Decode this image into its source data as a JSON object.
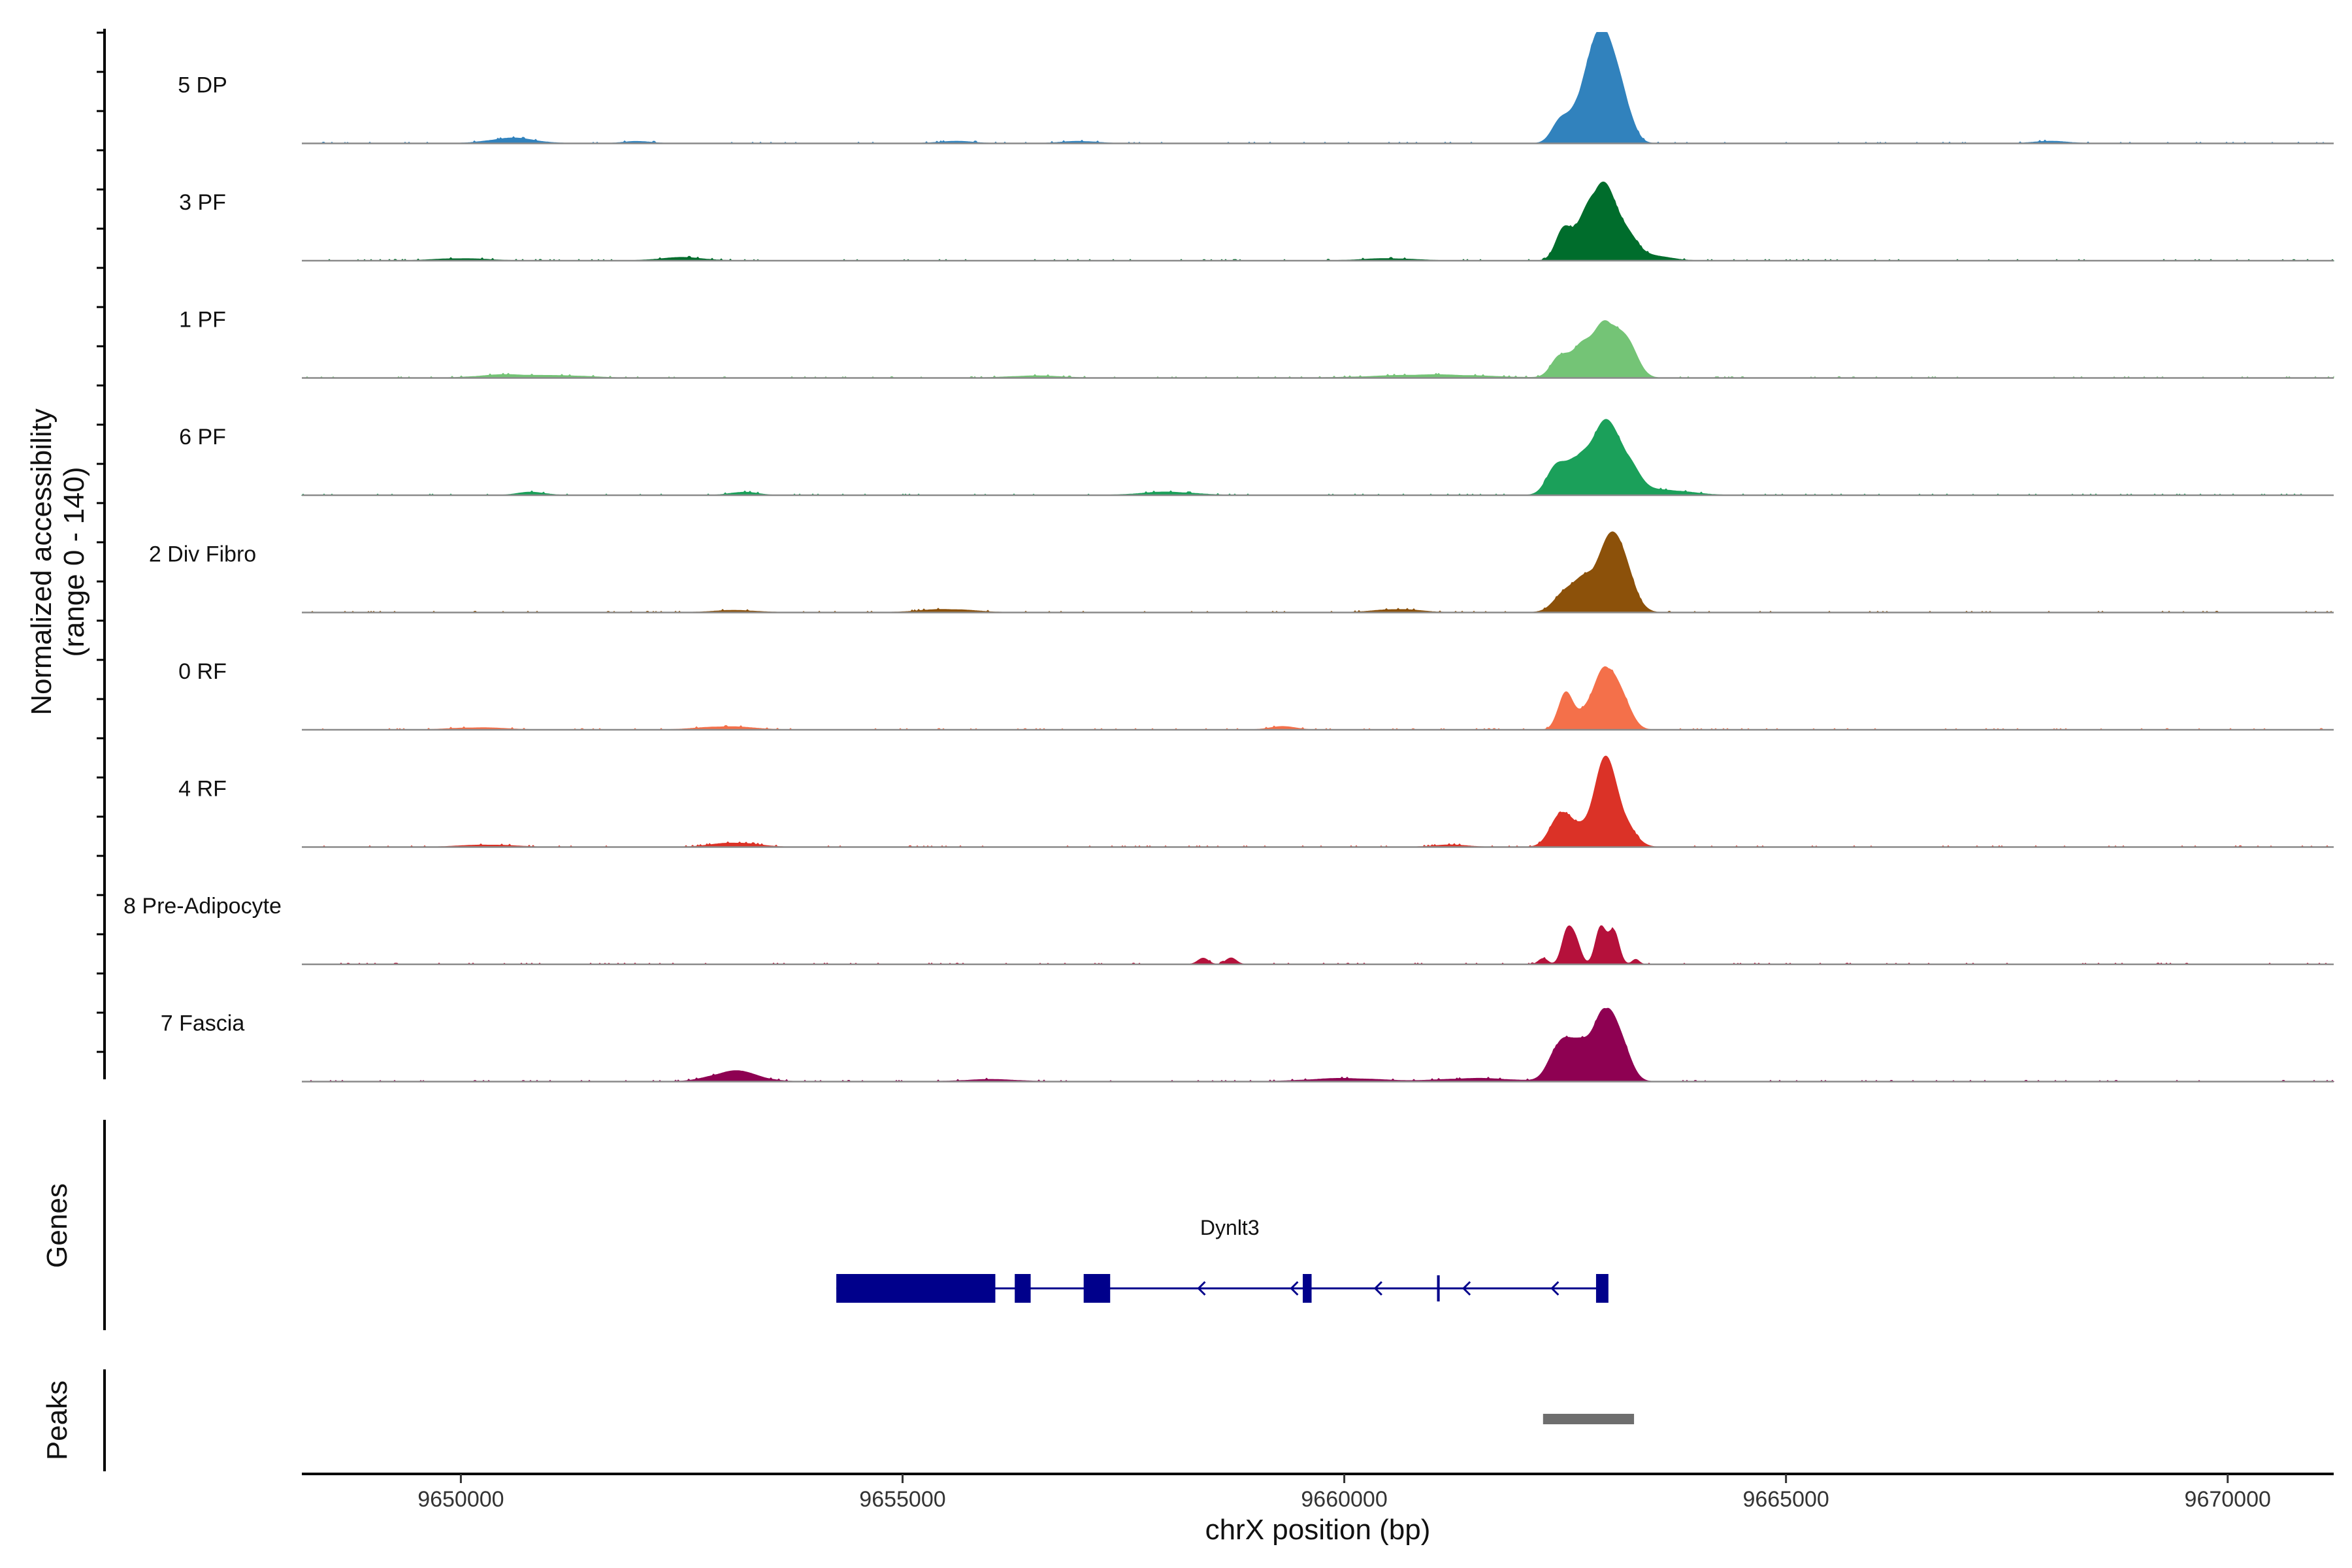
{
  "chart_data": {
    "type": "area",
    "title": "",
    "ylabel": "Normalized accessibility",
    "ylabel_range": "(range 0 - 140)",
    "ylim": [
      0,
      140
    ],
    "xlabel": "chrX position (bp)",
    "xlim": [
      9648200,
      9671200
    ],
    "x_ticks": [
      9650000,
      9655000,
      9660000,
      9665000,
      9670000
    ],
    "x_tick_labels": [
      "9650000",
      "9655000",
      "9660000",
      "9665000",
      "9670000"
    ],
    "tracks": [
      {
        "name": "5 DP",
        "color": "#3182BD",
        "peaks": [
          [
            9662450,
            0.2,
            100
          ],
          [
            9662700,
            0.35,
            120
          ],
          [
            9662920,
            0.95,
            140
          ],
          [
            9663150,
            0.35,
            110
          ],
          [
            9650580,
            0.05,
            250
          ],
          [
            9655600,
            0.02,
            200
          ],
          [
            9652000,
            0.02,
            150
          ],
          [
            9657000,
            0.02,
            200
          ],
          [
            9668000,
            0.02,
            200
          ]
        ]
      },
      {
        "name": "3 PF",
        "color": "#006D2C",
        "peaks": [
          [
            9662480,
            0.28,
            90
          ],
          [
            9662720,
            0.3,
            110
          ],
          [
            9662930,
            0.68,
            130
          ],
          [
            9663200,
            0.22,
            130
          ],
          [
            9663500,
            0.04,
            200
          ],
          [
            9652500,
            0.03,
            250
          ],
          [
            9650000,
            0.02,
            300
          ],
          [
            9660500,
            0.02,
            300
          ]
        ]
      },
      {
        "name": "1 PF",
        "color": "#74C476",
        "peaks": [
          [
            9662450,
            0.22,
            100
          ],
          [
            9662680,
            0.25,
            100
          ],
          [
            9662950,
            0.52,
            130
          ],
          [
            9663200,
            0.3,
            120
          ],
          [
            9661000,
            0.03,
            600
          ],
          [
            9650500,
            0.03,
            300
          ],
          [
            9651200,
            0.02,
            300
          ],
          [
            9656500,
            0.02,
            300
          ]
        ]
      },
      {
        "name": "6 PF",
        "color": "#1BA05A",
        "peaks": [
          [
            9662400,
            0.25,
            110
          ],
          [
            9662650,
            0.33,
            120
          ],
          [
            9662950,
            0.62,
            140
          ],
          [
            9663200,
            0.28,
            130
          ],
          [
            9663600,
            0.05,
            300
          ],
          [
            9650800,
            0.03,
            150
          ],
          [
            9653200,
            0.03,
            150
          ],
          [
            9658000,
            0.03,
            300
          ]
        ]
      },
      {
        "name": "2 Div Fibro",
        "color": "#8C510A",
        "peaks": [
          [
            9662500,
            0.18,
            130
          ],
          [
            9662720,
            0.24,
            110
          ],
          [
            9663000,
            0.65,
            140
          ],
          [
            9663200,
            0.25,
            120
          ],
          [
            9653100,
            0.02,
            250
          ],
          [
            9655500,
            0.03,
            300
          ],
          [
            9660600,
            0.03,
            250
          ]
        ]
      },
      {
        "name": "0 RF",
        "color": "#F4704A",
        "peaks": [
          [
            9662500,
            0.35,
            80
          ],
          [
            9662700,
            0.12,
            100
          ],
          [
            9662950,
            0.58,
            120
          ],
          [
            9663150,
            0.22,
            110
          ],
          [
            9653000,
            0.03,
            300
          ],
          [
            9659300,
            0.03,
            150
          ],
          [
            9650200,
            0.02,
            300
          ]
        ]
      },
      {
        "name": "4 RF",
        "color": "#DB3227",
        "peaks": [
          [
            9662450,
            0.28,
            120
          ],
          [
            9662650,
            0.15,
            120
          ],
          [
            9662950,
            0.75,
            120
          ],
          [
            9663150,
            0.22,
            130
          ],
          [
            9653100,
            0.04,
            250
          ],
          [
            9650300,
            0.02,
            300
          ],
          [
            9661200,
            0.02,
            200
          ]
        ]
      },
      {
        "name": "8 Pre-Adipocyte",
        "color": "#B5113B",
        "peaks": [
          [
            9662520,
            0.28,
            60
          ],
          [
            9662620,
            0.2,
            60
          ],
          [
            9662900,
            0.35,
            60
          ],
          [
            9663050,
            0.3,
            60
          ],
          [
            9662250,
            0.06,
            50
          ],
          [
            9663300,
            0.05,
            40
          ],
          [
            9658400,
            0.06,
            60
          ],
          [
            9658720,
            0.06,
            60
          ]
        ]
      },
      {
        "name": "7 Fascia",
        "color": "#8E0152",
        "peaks": [
          [
            9662450,
            0.38,
            120
          ],
          [
            9662680,
            0.28,
            110
          ],
          [
            9662950,
            0.68,
            120
          ],
          [
            9663150,
            0.25,
            110
          ],
          [
            9653100,
            0.1,
            250
          ],
          [
            9660000,
            0.03,
            400
          ],
          [
            9661500,
            0.03,
            400
          ],
          [
            9656000,
            0.02,
            300
          ]
        ]
      }
    ],
    "genes": [
      {
        "name": "Dynlt3",
        "strand": "-",
        "start": 9654250,
        "end": 9662950,
        "exons": [
          [
            9654250,
            9656050,
            "thick"
          ],
          [
            9656270,
            9656450,
            "thick"
          ],
          [
            9657050,
            9657350,
            "thick"
          ],
          [
            9659530,
            9659630,
            "thick"
          ],
          [
            9661050,
            9661080,
            "thin"
          ],
          [
            9662850,
            9662990,
            "thick"
          ]
        ],
        "arrows": [
          9658350,
          9659400,
          9660350,
          9661350,
          9662350
        ]
      }
    ],
    "gene_panel_label": "Genes",
    "peaks_panel_label": "Peaks",
    "peak_regions": [
      [
        9662250,
        9663280
      ]
    ]
  }
}
